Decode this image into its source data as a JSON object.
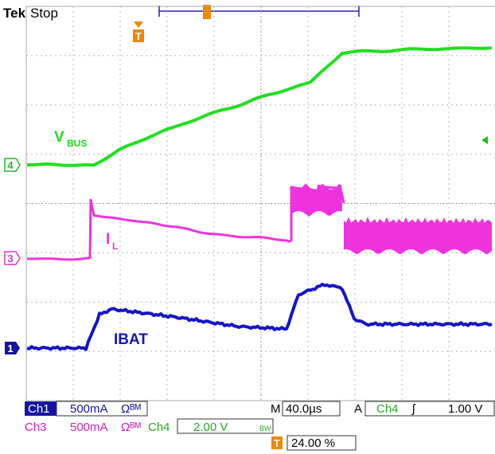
{
  "header": {
    "brand": "Tek",
    "status": "Stop"
  },
  "markers": {
    "trigger_position": "T",
    "channels": [
      "4",
      "3",
      "1"
    ]
  },
  "traces": {
    "vbus": {
      "label": "V",
      "sub": "BUS",
      "color": "#22dd22"
    },
    "il": {
      "label": "I",
      "sub": "L",
      "color": "#ee33dd"
    },
    "ibat": {
      "label": "IBAT",
      "color": "#1515c8"
    }
  },
  "readouts": {
    "ch1_name": "Ch1",
    "ch1_scale": "500mA",
    "ch3_name": "Ch3",
    "ch3_scale": "500mA",
    "ch4_name": "Ch4",
    "ch4_scale": "2.00 V",
    "bw_mark": "Ωᴮᴹ",
    "timebase_prefix": "M",
    "timebase": "40.0µs",
    "acq_prefix": "A",
    "trig_source": "Ch4",
    "trig_slope": "ʃ",
    "trig_level": "1.00 V",
    "trig_pos_icon": "T",
    "trig_pos": "24.00 %"
  }
}
